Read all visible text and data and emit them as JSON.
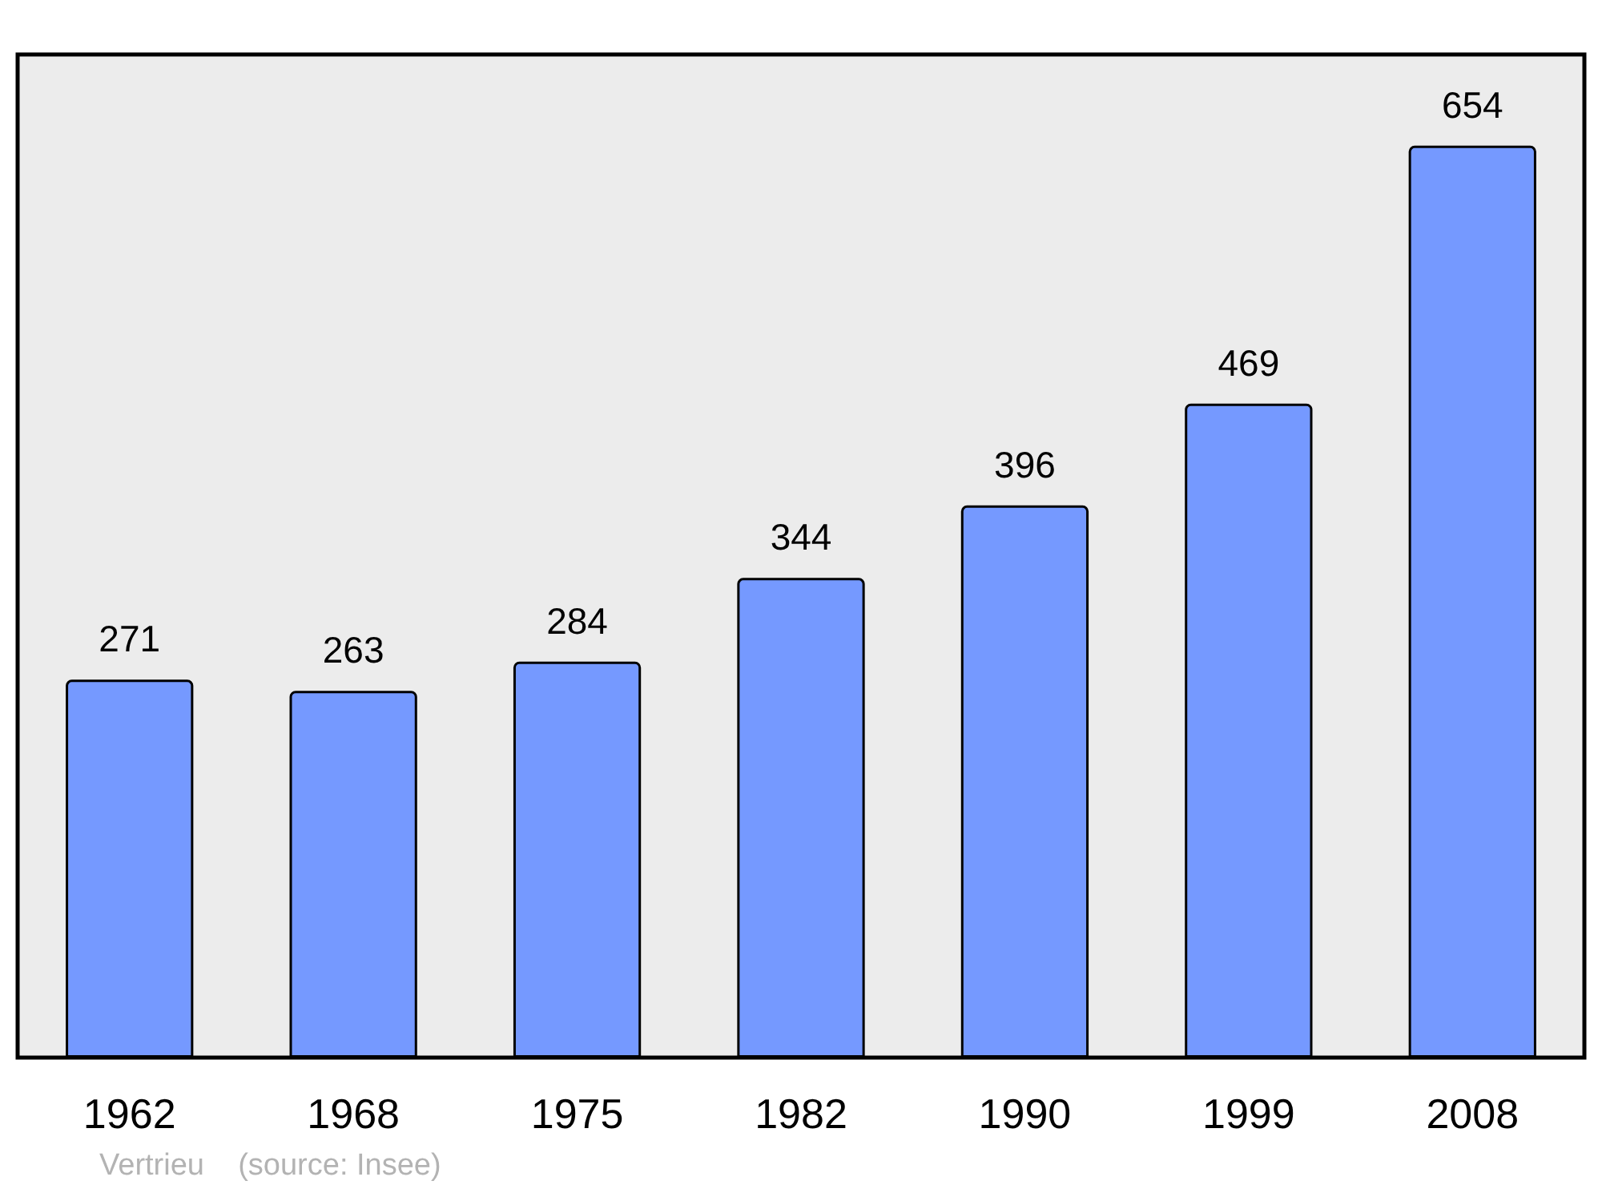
{
  "chart_data": {
    "type": "bar",
    "categories": [
      "1962",
      "1968",
      "1975",
      "1982",
      "1990",
      "1999",
      "2008"
    ],
    "values": [
      271,
      263,
      284,
      344,
      396,
      469,
      654
    ],
    "color": "#7599ff",
    "data_labels": true,
    "annotations": [
      "Vertrieu    (source: Insee)"
    ]
  }
}
